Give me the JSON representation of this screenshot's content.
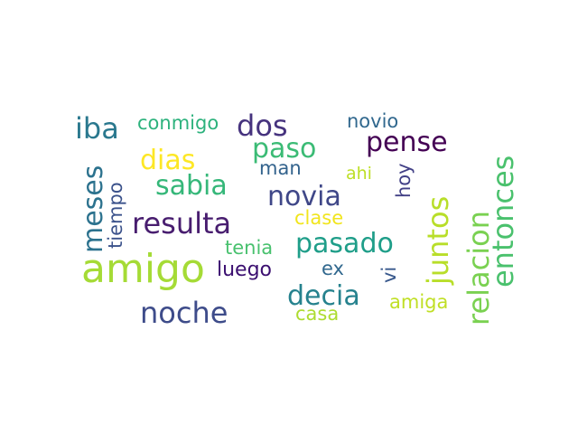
{
  "words": [
    {
      "text": "amigo",
      "color": "#a5db36",
      "rotated": false
    },
    {
      "text": "resulta",
      "color": "#481d6f",
      "rotated": false
    },
    {
      "text": "noche",
      "color": "#3e4c8a",
      "rotated": false
    },
    {
      "text": "meses",
      "color": "#2c728e",
      "rotated": true
    },
    {
      "text": "iba",
      "color": "#2a788e",
      "rotated": false
    },
    {
      "text": "conmigo",
      "color": "#2db27d",
      "rotated": false
    },
    {
      "text": "dos",
      "color": "#46337e",
      "rotated": false
    },
    {
      "text": "dias",
      "color": "#fde725",
      "rotated": false
    },
    {
      "text": "paso",
      "color": "#3bbb75",
      "rotated": false
    },
    {
      "text": "novio",
      "color": "#31688e",
      "rotated": false
    },
    {
      "text": "pense",
      "color": "#440154",
      "rotated": false
    },
    {
      "text": "sabia",
      "color": "#35b779",
      "rotated": false
    },
    {
      "text": "man",
      "color": "#33638d",
      "rotated": false
    },
    {
      "text": "novia",
      "color": "#3f4788",
      "rotated": false
    },
    {
      "text": "ahi",
      "color": "#bddf26",
      "rotated": false
    },
    {
      "text": "hoy",
      "color": "#424086",
      "rotated": true
    },
    {
      "text": "tiempo",
      "color": "#3b528b",
      "rotated": true
    },
    {
      "text": "clase",
      "color": "#f1e51d",
      "rotated": false
    },
    {
      "text": "juntos",
      "color": "#b8de29",
      "rotated": true
    },
    {
      "text": "relacion",
      "color": "#7ad151",
      "rotated": true
    },
    {
      "text": "entonces",
      "color": "#4ac16d",
      "rotated": true
    },
    {
      "text": "tenia",
      "color": "#48c16e",
      "rotated": false
    },
    {
      "text": "pasado",
      "color": "#1f9e89",
      "rotated": false
    },
    {
      "text": "luego",
      "color": "#3b0f70",
      "rotated": false
    },
    {
      "text": "ex",
      "color": "#31688e",
      "rotated": false
    },
    {
      "text": "vi",
      "color": "#38588c",
      "rotated": true
    },
    {
      "text": "decia",
      "color": "#26828e",
      "rotated": false
    },
    {
      "text": "amiga",
      "color": "#c0df25",
      "rotated": false
    },
    {
      "text": "casa",
      "color": "#addc30",
      "rotated": false
    }
  ]
}
